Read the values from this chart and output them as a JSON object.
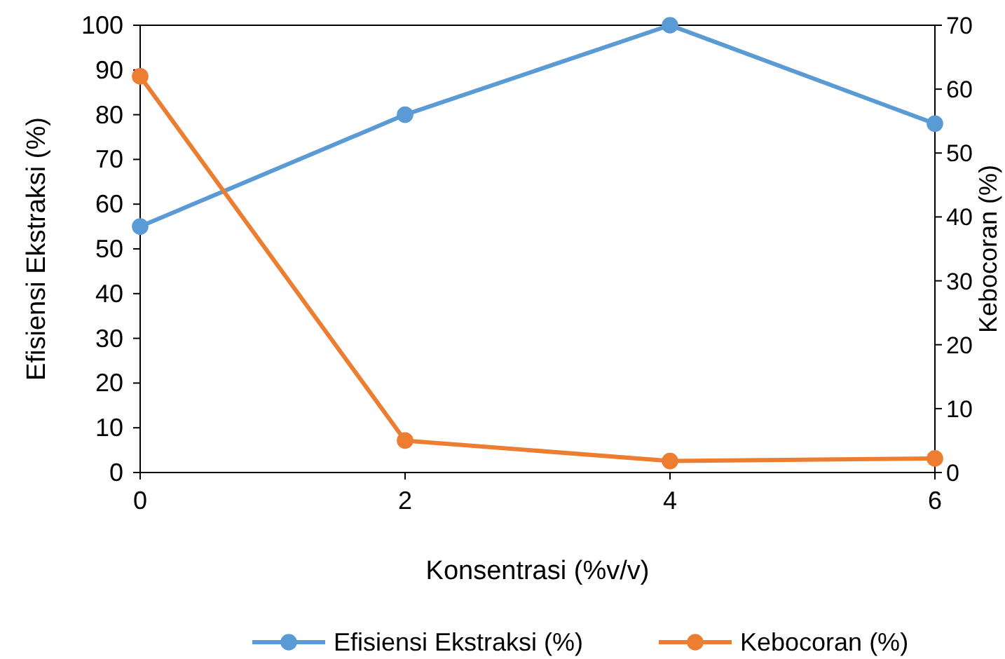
{
  "chart_data": {
    "type": "line",
    "xlabel": "Konsentrasi (%v/v)",
    "ylabel": "Efisiensi Ekstraksi (%)",
    "y2label": "Kebocoran (%)",
    "x": [
      0,
      2,
      4,
      6
    ],
    "xlim": [
      0,
      6
    ],
    "xticks": [
      0,
      2,
      4,
      6
    ],
    "ylim": [
      0,
      100
    ],
    "yticks": [
      0,
      10,
      20,
      30,
      40,
      50,
      60,
      70,
      80,
      90,
      100
    ],
    "y2lim": [
      0,
      70
    ],
    "y2ticks": [
      0,
      10,
      20,
      30,
      40,
      50,
      60,
      70
    ],
    "series": [
      {
        "name": "Efisiensi Ekstraksi (%)",
        "color": "#5b9bd5",
        "values": [
          55,
          80,
          100,
          78
        ]
      },
      {
        "name": "Kebocoran (%)",
        "color": "#ed7d31",
        "values": [
          62,
          5,
          1.8,
          2.2
        ],
        "axis": "y2"
      }
    ],
    "marker": "circle",
    "line_style": "solid",
    "grid": false,
    "legend": "bottom"
  }
}
